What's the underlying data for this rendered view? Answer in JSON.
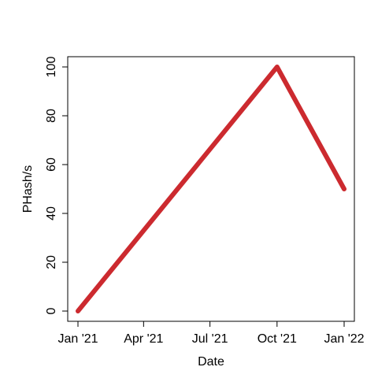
{
  "chart_data": {
    "type": "line",
    "title": "",
    "xlabel": "Date",
    "ylabel": "PHash/s",
    "x_ticks": [
      "Jan '21",
      "Apr '21",
      "Jul '21",
      "Oct '21",
      "Jan '22"
    ],
    "y_ticks": [
      "0",
      "20",
      "40",
      "60",
      "80",
      "100"
    ],
    "xlim": [
      "2021-01-01",
      "2022-01-01"
    ],
    "ylim": [
      0,
      100
    ],
    "grid": false,
    "legend": "none",
    "series": [
      {
        "color": "#cc2a2f",
        "points": [
          {
            "x": "2021-01-01",
            "y": 0
          },
          {
            "x": "2021-10-01",
            "y": 100
          },
          {
            "x": "2022-01-01",
            "y": 50
          }
        ]
      }
    ]
  }
}
